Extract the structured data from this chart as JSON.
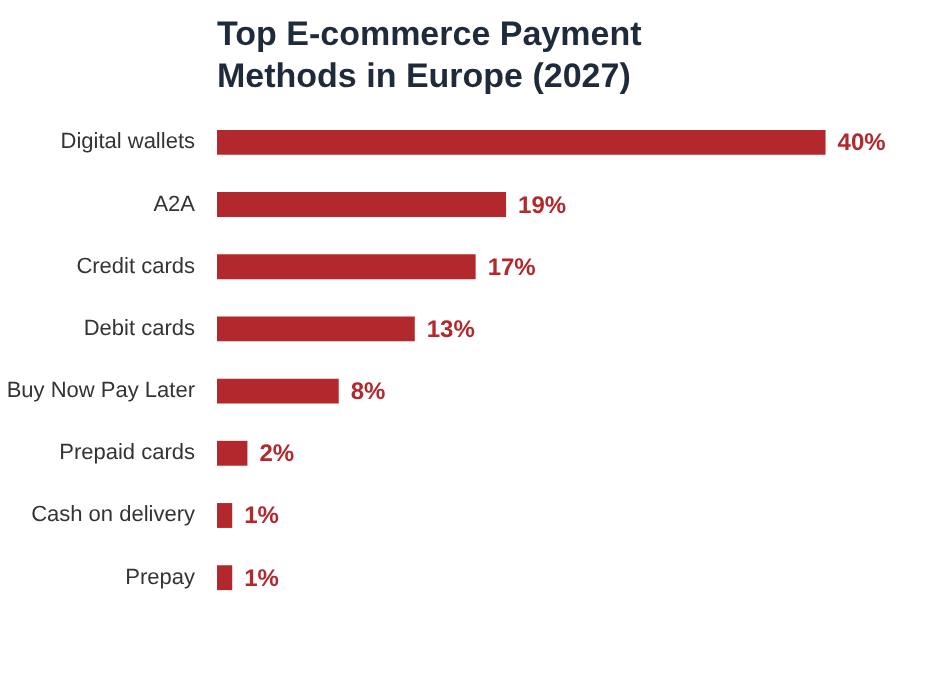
{
  "chart_data": {
    "type": "bar",
    "orientation": "horizontal",
    "title": "Top E-commerce Payment Methods in Europe (2027)",
    "categories": [
      "Digital wallets",
      "A2A",
      "Credit cards",
      "Debit cards",
      "Buy Now Pay Later",
      "Prepaid cards",
      "Cash on delivery",
      "Prepay"
    ],
    "values": [
      40,
      19,
      17,
      13,
      8,
      2,
      1,
      1
    ],
    "value_labels": [
      "40%",
      "19%",
      "17%",
      "13%",
      "8%",
      "2%",
      "1%",
      "1%"
    ],
    "color": "#b3282d"
  }
}
